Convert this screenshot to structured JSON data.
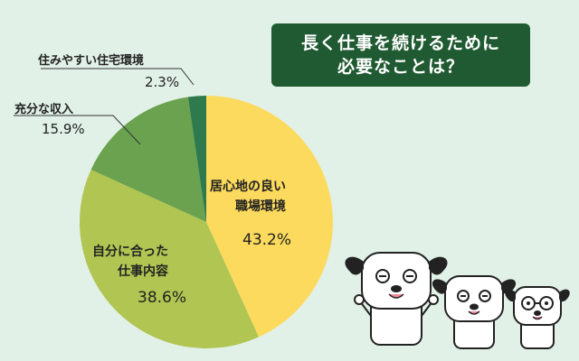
{
  "title": {
    "line1": "長く仕事を続けるために",
    "line2": "必要なことは？"
  },
  "chart_data": {
    "type": "pie",
    "slices": [
      {
        "label_lines": [
          "居心地の良い",
          "職場環境"
        ],
        "value": 43.2,
        "value_label": "43.2%",
        "color": "#fcda5d"
      },
      {
        "label_lines": [
          "自分に合った",
          "仕事内容"
        ],
        "value": 38.6,
        "value_label": "38.6%",
        "color": "#b1c553"
      },
      {
        "label_lines": [
          "充分な収入"
        ],
        "value": 15.9,
        "value_label": "15.9%",
        "color": "#6aa24f"
      },
      {
        "label_lines": [
          "住みやすい住宅環境"
        ],
        "value": 2.3,
        "value_label": "2.3%",
        "color": "#2e7a4e"
      }
    ]
  },
  "colors": {
    "background": "#e1f1e7",
    "title_bg": "#1f5a32",
    "leader_line": "#333333"
  },
  "icons": [
    "dog-big-icon",
    "dog-medium-icon",
    "dog-small-icon"
  ]
}
